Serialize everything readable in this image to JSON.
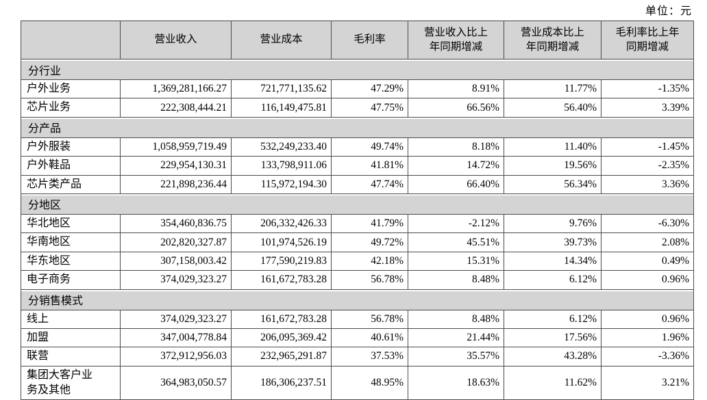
{
  "unit_label": "单位：元",
  "colors": {
    "header_bg": "#d4d4d4",
    "section_bg": "#d4d4d4",
    "border": "#4a4a4a",
    "row_bg": "#ffffff",
    "text": "#000000"
  },
  "table": {
    "columns": [
      "",
      "营业收入",
      "营业成本",
      "毛利率",
      "营业收入比上\n年同期增减",
      "营业成本比上\n年同期增减",
      "毛利率比上年\n同期增减"
    ],
    "sections": [
      {
        "title": "分行业",
        "rows": [
          {
            "label": "户外业务",
            "values": [
              "1,369,281,166.27",
              "721,771,135.62",
              "47.29%",
              "8.91%",
              "11.77%",
              "-1.35%"
            ]
          },
          {
            "label": "芯片业务",
            "values": [
              "222,308,444.21",
              "116,149,475.81",
              "47.75%",
              "66.56%",
              "56.40%",
              "3.39%"
            ]
          }
        ]
      },
      {
        "title": "分产品",
        "rows": [
          {
            "label": "户外服装",
            "values": [
              "1,058,959,719.49",
              "532,249,233.40",
              "49.74%",
              "8.18%",
              "11.40%",
              "-1.45%"
            ]
          },
          {
            "label": "户外鞋品",
            "values": [
              "229,954,130.31",
              "133,798,911.06",
              "41.81%",
              "14.72%",
              "19.56%",
              "-2.35%"
            ]
          },
          {
            "label": "芯片类产品",
            "values": [
              "221,898,236.44",
              "115,972,194.30",
              "47.74%",
              "66.40%",
              "56.34%",
              "3.36%"
            ]
          }
        ]
      },
      {
        "title": "分地区",
        "rows": [
          {
            "label": "华北地区",
            "values": [
              "354,460,836.75",
              "206,332,426.33",
              "41.79%",
              "-2.12%",
              "9.76%",
              "-6.30%"
            ]
          },
          {
            "label": "华南地区",
            "values": [
              "202,820,327.87",
              "101,974,526.19",
              "49.72%",
              "45.51%",
              "39.73%",
              "2.08%"
            ]
          },
          {
            "label": "华东地区",
            "values": [
              "307,158,003.42",
              "177,590,219.83",
              "42.18%",
              "15.31%",
              "14.34%",
              "0.49%"
            ]
          },
          {
            "label": "电子商务",
            "values": [
              "374,029,323.27",
              "161,672,783.28",
              "56.78%",
              "8.48%",
              "6.12%",
              "0.96%"
            ]
          }
        ]
      },
      {
        "title": "分销售模式",
        "rows": [
          {
            "label": "线上",
            "values": [
              "374,029,323.27",
              "161,672,783.28",
              "56.78%",
              "8.48%",
              "6.12%",
              "0.96%"
            ]
          },
          {
            "label": "加盟",
            "values": [
              "347,004,778.84",
              "206,095,369.42",
              "40.61%",
              "21.44%",
              "17.56%",
              "1.96%"
            ]
          },
          {
            "label": "联营",
            "values": [
              "372,912,956.03",
              "232,965,291.87",
              "37.53%",
              "35.57%",
              "43.28%",
              "-3.36%"
            ]
          },
          {
            "label": "集团大客户业\n务及其他",
            "values": [
              "364,983,050.57",
              "186,306,237.51",
              "48.95%",
              "18.63%",
              "11.62%",
              "3.21%"
            ]
          }
        ]
      }
    ]
  }
}
